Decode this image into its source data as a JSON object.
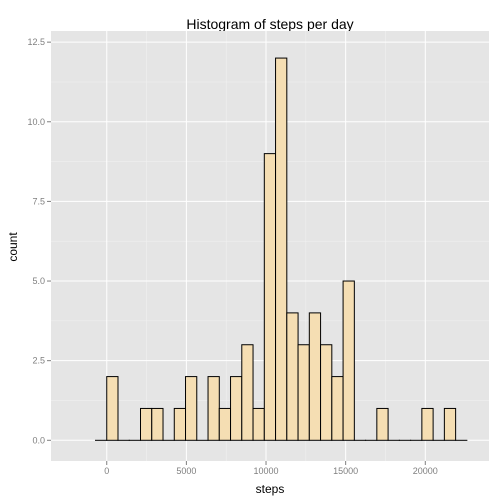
{
  "chart_data": {
    "type": "bar",
    "title": "Histogram of steps per day",
    "xlabel": "steps",
    "ylabel": "count",
    "x_ticks": [
      0,
      5000,
      10000,
      15000,
      20000
    ],
    "x_tick_labels": [
      "0",
      "5000",
      "10000",
      "15000",
      "20000"
    ],
    "y_ticks": [
      0,
      2.5,
      5,
      7.5,
      10,
      12.5
    ],
    "y_tick_labels": [
      "0.0",
      "2.5",
      "5.0",
      "7.5",
      "10.0",
      "12.5"
    ],
    "bin_width": 706.6,
    "bin_centers": [
      -353,
      353,
      1060,
      1767,
      2473,
      3180,
      3886,
      4593,
      5299,
      6006,
      6713,
      7419,
      8126,
      8832,
      9539,
      10246,
      10952,
      11659,
      12365,
      13072,
      13778,
      14485,
      15192,
      15898,
      16605,
      17311,
      18018,
      18725,
      19431,
      20138,
      20844,
      21551,
      22257
    ],
    "values": [
      0,
      2,
      0,
      0,
      1,
      1,
      0,
      1,
      2,
      0,
      2,
      1,
      2,
      3,
      1,
      9,
      12,
      4,
      3,
      4,
      3,
      2,
      5,
      0,
      0,
      1,
      0,
      0,
      0,
      1,
      0,
      1,
      0
    ],
    "xlim": [
      -3500,
      24000
    ],
    "ylim": [
      -0.65,
      12.85
    ],
    "grid": true,
    "colors": {
      "panel_background": "#e5e5e5",
      "grid_major": "#ffffff",
      "grid_minor": "#f2f2f2",
      "bar_fill": "#f5deb3",
      "bar_outline": "#000000",
      "tick_label": "#7f7f7f"
    }
  }
}
